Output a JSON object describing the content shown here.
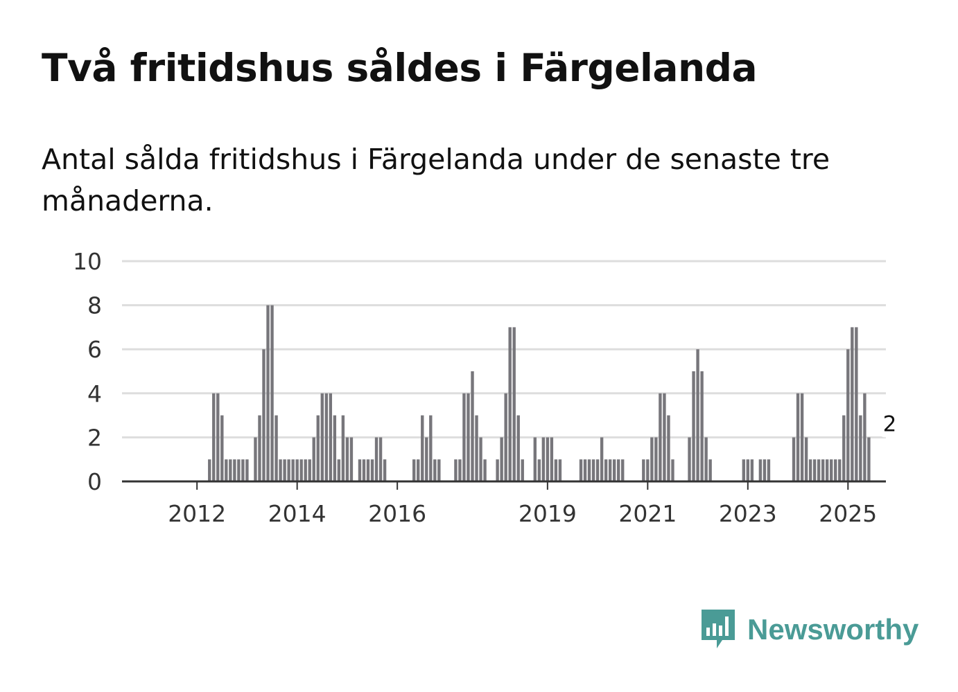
{
  "title": "Två fritidshus såldes i Färgelanda",
  "subtitle": "Antal sålda fritidshus i Färgelanda under de senaste tre månaderna.",
  "brand": {
    "name": "Newsworthy",
    "color": "#4a9b96",
    "icon": "newsworthy-chart-icon"
  },
  "colors": {
    "bar": "#77767b",
    "highlight": "#1c9c9a",
    "grid": "#dddddd",
    "axis": "#333333"
  },
  "chart_data": {
    "type": "bar",
    "title": "Två fritidshus såldes i Färgelanda",
    "xlabel": "",
    "ylabel": "",
    "ylim": [
      0,
      10
    ],
    "yticks": [
      0,
      2,
      4,
      6,
      8,
      10
    ],
    "xticks": [
      {
        "label": "2012",
        "index": 9
      },
      {
        "label": "2014",
        "index": 33
      },
      {
        "label": "2016",
        "index": 57
      },
      {
        "label": "2019",
        "index": 93
      },
      {
        "label": "2021",
        "index": 117
      },
      {
        "label": "2023",
        "index": 141
      },
      {
        "label": "2025",
        "index": 165
      }
    ],
    "unit": "quarterly rolling count (monthly steps)",
    "values": [
      0,
      0,
      0,
      0,
      0,
      0,
      0,
      0,
      0,
      0,
      0,
      0,
      1,
      4,
      4,
      3,
      1,
      1,
      1,
      1,
      1,
      1,
      0,
      2,
      3,
      6,
      8,
      8,
      3,
      1,
      1,
      1,
      1,
      1,
      1,
      1,
      1,
      2,
      3,
      4,
      4,
      4,
      3,
      1,
      3,
      2,
      2,
      0,
      1,
      1,
      1,
      1,
      2,
      2,
      1,
      0,
      0,
      0,
      0,
      0,
      0,
      1,
      1,
      3,
      2,
      3,
      1,
      1,
      0,
      0,
      0,
      1,
      1,
      4,
      4,
      5,
      3,
      2,
      1,
      0,
      0,
      1,
      2,
      4,
      7,
      7,
      3,
      1,
      0,
      0,
      2,
      1,
      2,
      2,
      2,
      1,
      1,
      0,
      0,
      0,
      0,
      1,
      1,
      1,
      1,
      1,
      2,
      1,
      1,
      1,
      1,
      1,
      0,
      0,
      0,
      0,
      1,
      1,
      2,
      2,
      4,
      4,
      3,
      1,
      0,
      0,
      0,
      2,
      5,
      6,
      5,
      2,
      1,
      0,
      0,
      0,
      0,
      0,
      0,
      0,
      1,
      1,
      1,
      0,
      1,
      1,
      1,
      0,
      0,
      0,
      0,
      0,
      2,
      4,
      4,
      2,
      1,
      1,
      1,
      1,
      1,
      1,
      1,
      1,
      3,
      6,
      7,
      7,
      3,
      4,
      2
    ],
    "highlight_index": 175,
    "annotation": {
      "text": "2",
      "index": 175,
      "value": 2
    }
  }
}
